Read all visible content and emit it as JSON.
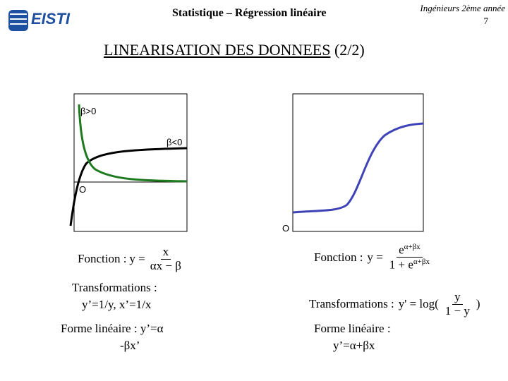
{
  "header": {
    "logo": "EISTI",
    "title": "Statistique – Régression linéaire",
    "course": "Ingénieurs 2ème année",
    "page": "7"
  },
  "heading": {
    "main": "LINEARISATION DES DONNEES",
    "part": "(2/2)"
  },
  "left": {
    "graph_labels": {
      "beta_pos": "β>0",
      "beta_neg": "β<0",
      "origin": "O"
    },
    "function_label": "Fonction :",
    "formula": {
      "lhs": "y =",
      "numerator": "x",
      "denominator": "αx − β"
    },
    "transformations": [
      "Transformations :",
      "y’=1/y, x’=1/x"
    ],
    "linear_form": [
      "Forme linéaire : y’=α",
      "-βx’"
    ]
  },
  "right": {
    "graph_labels": {
      "origin": "O"
    },
    "function_label": "Fonction :",
    "formula": {
      "lhs": "y =",
      "numerator_base": "e",
      "numerator_exp": "α+βx",
      "denominator_base": "1 + e",
      "denominator_exp": "α+βx"
    },
    "transformations_label": "Transformations :",
    "transformation_formula": {
      "lhs": "y' = log(",
      "numerator": "y",
      "denominator": "1 − y",
      "close": ")"
    },
    "linear_form": [
      "Forme linéaire :",
      "y’=α+βx"
    ]
  }
}
